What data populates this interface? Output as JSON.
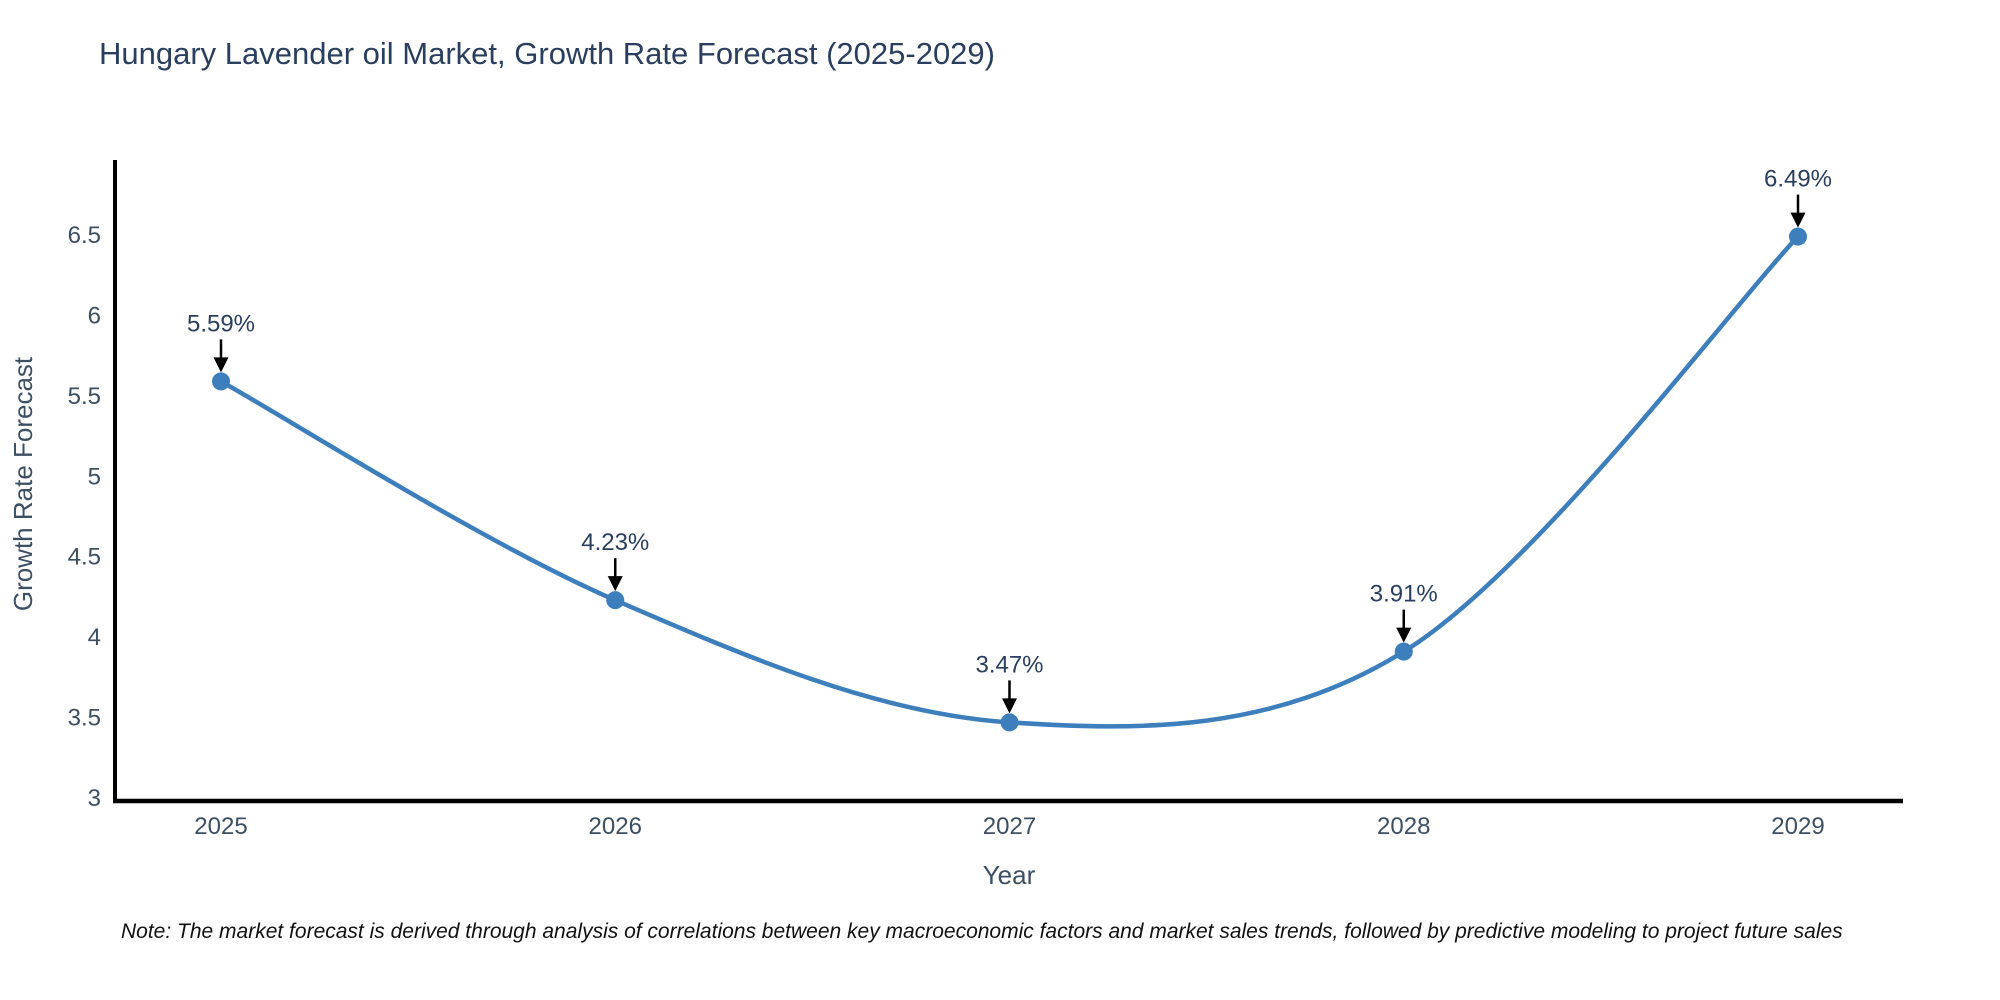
{
  "page": {
    "title": "Hungary Lavender oil Market, Growth Rate Forecast (2025-2029)",
    "footnote": "Note: The market forecast is derived through analysis of correlations between key macroeconomic factors and market sales trends, followed by predictive modeling to project future sales"
  },
  "chart_data": {
    "type": "line",
    "title": "Hungary Lavender oil Market, Growth Rate Forecast (2025-2029)",
    "xlabel": "Year",
    "ylabel": "Growth Rate Forecast",
    "categories": [
      "2025",
      "2026",
      "2027",
      "2028",
      "2029"
    ],
    "series": [
      {
        "name": "Growth Rate Forecast",
        "values": [
          5.59,
          4.23,
          3.47,
          3.91,
          6.49
        ],
        "point_labels": [
          "5.59%",
          "4.23%",
          "3.47%",
          "3.91%",
          "6.49%"
        ]
      }
    ],
    "ylim": [
      3,
      6.97
    ],
    "yticks": [
      "3",
      "3.5",
      "4",
      "4.5",
      "5",
      "5.5",
      "6",
      "6.5"
    ],
    "grid": false,
    "legend_position": "none",
    "line_shape": "spline",
    "annotation_style": "value-labels-with-down-arrows",
    "colors": {
      "line": "#3d7ebd",
      "marker": "#3d7ebd",
      "axis": "#000000",
      "title": "#2a3f5f",
      "axis_label": "#3d4f63",
      "tick_label": "#3d4f63",
      "annotation": "#2a3f5f",
      "arrow": "#000000",
      "note": "#111111"
    }
  }
}
